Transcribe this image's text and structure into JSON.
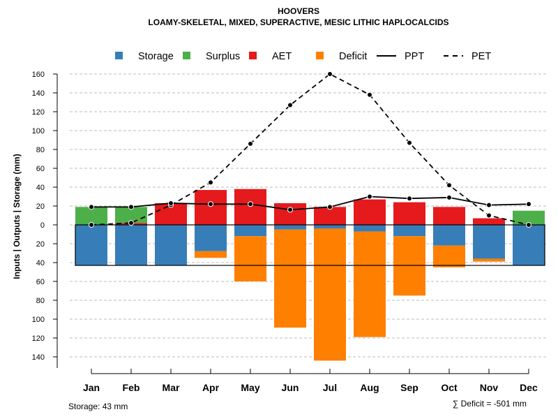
{
  "chart_data": {
    "type": "bar",
    "title": "HOOVERS",
    "subtitle": "LOAMY-SKELETAL, MIXED, SUPERACTIVE, MESIC LITHIC HAPLOCALCIDS",
    "ylabel": "Inputs | Outputs | Storage    (mm)",
    "ylim": [
      -150,
      160
    ],
    "y_ticks": [
      160,
      140,
      120,
      100,
      80,
      60,
      40,
      20,
      0,
      -20,
      -40,
      -60,
      -80,
      -100,
      -120,
      -140
    ],
    "y_tick_labels": [
      "160",
      "140",
      "120",
      "100",
      "80",
      "60",
      "40",
      "20",
      "0",
      "20",
      "40",
      "60",
      "80",
      "100",
      "120",
      "140"
    ],
    "categories": [
      "Jan",
      "Feb",
      "Mar",
      "Apr",
      "May",
      "Jun",
      "Jul",
      "Aug",
      "Sep",
      "Oct",
      "Nov",
      "Dec"
    ],
    "legend": [
      {
        "name": "Storage",
        "kind": "box",
        "color": "#377EB8"
      },
      {
        "name": "Surplus",
        "kind": "box",
        "color": "#4DAF4A"
      },
      {
        "name": "AET",
        "kind": "box",
        "color": "#E41A1C"
      },
      {
        "name": "Deficit",
        "kind": "box",
        "color": "#FF7F00"
      },
      {
        "name": "PPT",
        "kind": "solid"
      },
      {
        "name": "PET",
        "kind": "dashed"
      }
    ],
    "series": {
      "storage_below": [
        43,
        43,
        43,
        28,
        12,
        5,
        4,
        7,
        12,
        22,
        36,
        43
      ],
      "deficit": [
        0,
        0,
        0,
        7,
        48,
        104,
        140,
        112,
        63,
        23,
        3,
        0
      ],
      "aet": [
        0,
        2,
        23,
        37,
        38,
        23,
        19,
        27,
        24,
        19,
        7,
        0
      ],
      "surplus": [
        19,
        17,
        0,
        0,
        0,
        0,
        0,
        0,
        0,
        0,
        0,
        15
      ],
      "ppt": [
        19,
        19,
        23,
        22,
        22,
        16,
        19,
        30,
        28,
        29,
        21,
        22
      ],
      "pet": [
        0,
        2,
        21,
        45,
        86,
        127,
        160,
        138,
        87,
        42,
        10,
        0
      ]
    },
    "storage_capacity": 43,
    "grid": true
  },
  "footer": {
    "storage": "Storage: 43 mm",
    "deficit": "∑ Deficit = -501 mm"
  },
  "colors": {
    "storage": "#377EB8",
    "surplus": "#4DAF4A",
    "aet": "#E41A1C",
    "deficit": "#FF7F00",
    "grid": "#bbbbbb"
  }
}
